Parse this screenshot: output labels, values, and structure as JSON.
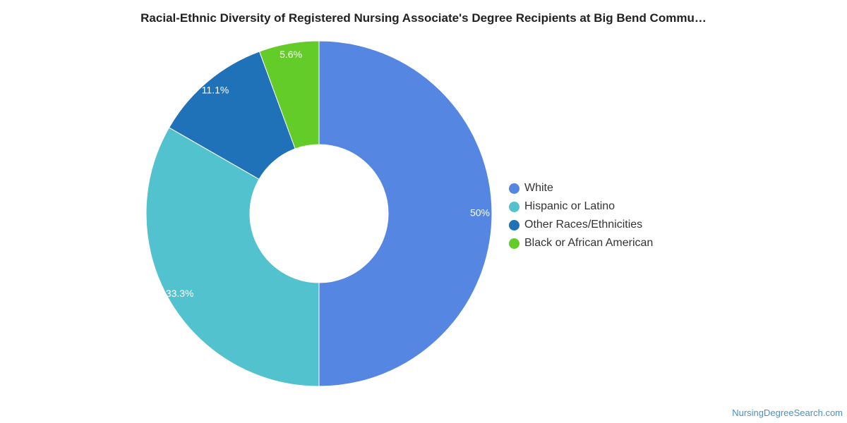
{
  "chart_data": {
    "type": "pie",
    "title": "Racial-Ethnic Diversity of Registered Nursing Associate's Degree Recipients at Big Bend Commu…",
    "legend_position": "right",
    "donut": true,
    "slices": [
      {
        "name": "White",
        "value": 50,
        "label": "50%",
        "color": "#5486E2"
      },
      {
        "name": "Hispanic or Latino",
        "value": 33.3,
        "label": "33.3%",
        "color": "#52C2CF"
      },
      {
        "name": "Other Races/Ethnicities",
        "value": 11.1,
        "label": "11.1%",
        "color": "#1F72B8"
      },
      {
        "name": "Black or African American",
        "value": 5.6,
        "label": "5.6%",
        "color": "#63CC28"
      }
    ]
  },
  "footer": {
    "watermark": "NursingDegreeSearch.com"
  }
}
